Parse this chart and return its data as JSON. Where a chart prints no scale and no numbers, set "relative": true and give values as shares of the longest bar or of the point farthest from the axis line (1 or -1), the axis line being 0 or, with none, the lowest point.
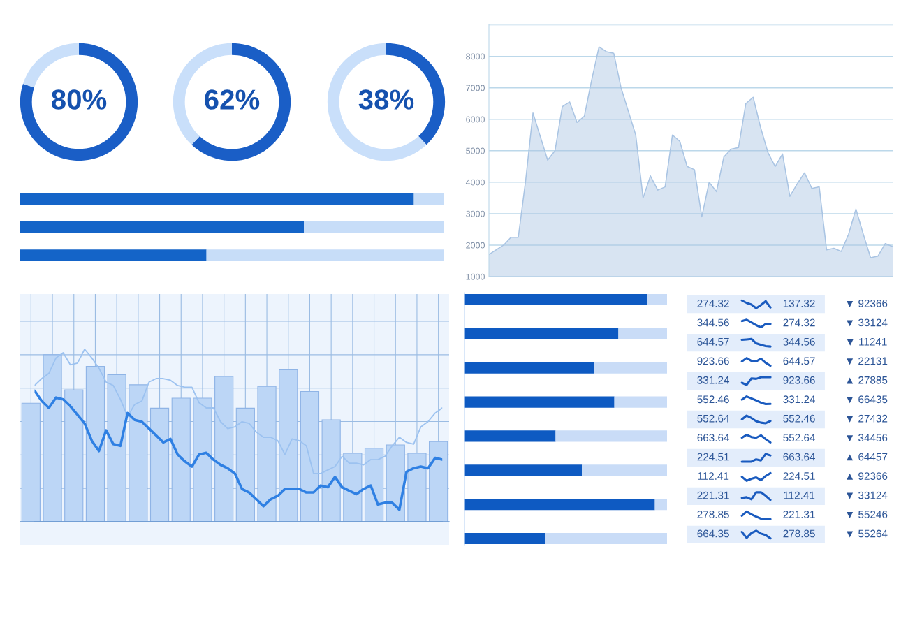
{
  "chart_data": [
    {
      "type": "donut",
      "categories": [
        null,
        null
      ],
      "values": [
        80,
        20
      ],
      "colors": [
        "#1a5ec6",
        "#c9dffa"
      ],
      "annotations": [
        "80%"
      ]
    },
    {
      "type": "donut",
      "categories": [
        null,
        null
      ],
      "values": [
        62,
        38
      ],
      "colors": [
        "#1a5ec6",
        "#c9dffa"
      ],
      "annotations": [
        "62%"
      ]
    },
    {
      "type": "donut",
      "categories": [
        null,
        null
      ],
      "values": [
        38,
        62
      ],
      "colors": [
        "#1a5ec6",
        "#c9dffa"
      ],
      "annotations": [
        "38%"
      ]
    },
    {
      "type": "area",
      "categories": [
        null,
        null,
        null,
        null,
        null,
        null,
        null,
        null,
        null,
        null,
        null,
        null,
        null,
        null,
        null,
        null,
        null,
        null,
        null,
        null,
        null,
        null,
        null,
        null,
        null,
        null,
        null,
        null,
        null,
        null,
        null,
        null,
        null,
        null,
        null,
        null,
        null,
        null,
        null,
        null,
        null,
        null,
        null,
        null,
        null,
        null,
        null,
        null,
        null,
        null,
        null,
        null,
        null,
        null,
        null,
        null
      ],
      "values": [
        1700,
        1850,
        2000,
        2250,
        2250,
        4050,
        6200,
        5450,
        4700,
        5000,
        6400,
        6550,
        5900,
        6100,
        7250,
        8300,
        8150,
        8100,
        7000,
        6250,
        5500,
        3500,
        4200,
        3750,
        3850,
        5500,
        5300,
        4500,
        4400,
        2900,
        4000,
        3700,
        4800,
        5050,
        5100,
        6500,
        6700,
        5750,
        4950,
        4500,
        4900,
        3550,
        3950,
        4300,
        3800,
        3850,
        1850,
        1900,
        1800,
        2350,
        3150,
        2350,
        1600,
        1650,
        2050,
        1950
      ],
      "color": "#a9c4e3",
      "ylim": [
        1000,
        9000
      ],
      "yticks": [
        1000,
        2000,
        3000,
        4000,
        5000,
        6000,
        7000,
        8000,
        {
          "value": 9000,
          "label": null
        }
      ],
      "grid": "y",
      "tick_labels": "y"
    },
    {
      "type": "bar",
      "orientation": "horizontal",
      "stacked": true,
      "relative": true,
      "categories": [
        null,
        null,
        null
      ],
      "series": [
        {
          "color": "#1464c8",
          "values": [
            0.93,
            0.67,
            0.44
          ]
        },
        {
          "color": "#c7ddf8",
          "values": [
            0.07,
            0.33,
            0.56
          ]
        }
      ]
    },
    {
      "type": "bar",
      "relative": true,
      "grid": true,
      "categories": [
        null,
        null,
        null,
        null,
        null,
        null,
        null,
        null,
        null,
        null,
        null,
        null,
        null,
        null,
        null,
        null,
        null,
        null,
        null,
        null
      ],
      "color": "#bcd6f6",
      "values": [
        0.71,
        1.0,
        0.79,
        0.93,
        0.88,
        0.82,
        0.68,
        0.74,
        0.74,
        0.87,
        0.68,
        0.81,
        0.91,
        0.78,
        0.61,
        0.41,
        0.44,
        0.46,
        0.41,
        0.48
      ]
    },
    {
      "type": "line",
      "relative": true,
      "categories": [
        null,
        null,
        null,
        null,
        null,
        null,
        null,
        null,
        null,
        null,
        null,
        null,
        null,
        null,
        null,
        null,
        null,
        null,
        null,
        null,
        null,
        null,
        null,
        null,
        null,
        null,
        null,
        null,
        null,
        null,
        null,
        null,
        null,
        null,
        null,
        null,
        null,
        null,
        null,
        null,
        null,
        null,
        null,
        null,
        null,
        null,
        null,
        null,
        null,
        null,
        null,
        null,
        null,
        null,
        null,
        null,
        null,
        null
      ],
      "series": [
        {
          "color": "#9cc2f0",
          "values": [
            0.79,
            0.83,
            0.86,
            0.95,
            0.98,
            0.91,
            0.92,
            1.0,
            0.95,
            0.89,
            0.81,
            0.79,
            0.71,
            0.61,
            0.68,
            0.7,
            0.81,
            0.83,
            0.83,
            0.82,
            0.79,
            0.78,
            0.78,
            0.69,
            0.66,
            0.66,
            0.58,
            0.54,
            0.55,
            0.58,
            0.57,
            0.52,
            0.49,
            0.49,
            0.47,
            0.39,
            0.48,
            0.47,
            0.44,
            0.28,
            0.28,
            0.3,
            0.32,
            0.38,
            0.34,
            0.34,
            0.33,
            0.36,
            0.36,
            0.38,
            0.44,
            0.49,
            0.46,
            0.45,
            0.55,
            0.58,
            0.63,
            0.66
          ]
        },
        {
          "color": "#2f80e3",
          "values": [
            0.76,
            0.7,
            0.66,
            0.72,
            0.71,
            0.67,
            0.62,
            0.57,
            0.47,
            0.41,
            0.53,
            0.45,
            0.44,
            0.63,
            0.59,
            0.58,
            0.54,
            0.5,
            0.46,
            0.48,
            0.39,
            0.35,
            0.32,
            0.39,
            0.4,
            0.36,
            0.33,
            0.31,
            0.28,
            0.19,
            0.17,
            0.13,
            0.09,
            0.13,
            0.15,
            0.19,
            0.19,
            0.19,
            0.17,
            0.17,
            0.21,
            0.2,
            0.26,
            0.2,
            0.18,
            0.16,
            0.19,
            0.21,
            0.1,
            0.11,
            0.11,
            0.07,
            0.29,
            0.31,
            0.32,
            0.31,
            0.37,
            0.36
          ]
        }
      ]
    },
    {
      "type": "bar",
      "orientation": "horizontal",
      "stacked": true,
      "relative": true,
      "categories": [
        null,
        null,
        null,
        null,
        null,
        null,
        null,
        null
      ],
      "series": [
        {
          "color": "#0e5ac2",
          "values": [
            0.9,
            0.76,
            0.64,
            0.74,
            0.45,
            0.58,
            0.94,
            0.4
          ]
        },
        {
          "color": "#c9dcf7",
          "values": [
            0.1,
            0.24,
            0.36,
            0.26,
            0.55,
            0.42,
            0.06,
            0.6
          ]
        }
      ]
    },
    {
      "type": "other",
      "annotations": [
        "274.32",
        "137.32",
        "▼ 92366",
        "344.56",
        "274.32",
        "▼ 33124",
        "644.57",
        "344.56",
        "▼ 11241",
        "923.66",
        "644.57",
        "▼ 22131",
        "331.24",
        "923.66",
        "▲ 27885",
        "552.46",
        "331.24",
        "▼ 66435",
        "552.64",
        "552.46",
        "▼ 27432",
        "663.64",
        "552.64",
        "▼ 34456",
        "224.51",
        "663.64",
        "▲ 64457",
        "112.41",
        "224.51",
        "▲ 92366",
        "221.31",
        "112.41",
        "▼ 33124",
        "278.85",
        "221.31",
        "▼ 55246",
        "664.35",
        "278.85",
        "▼ 55264"
      ]
    }
  ]
}
